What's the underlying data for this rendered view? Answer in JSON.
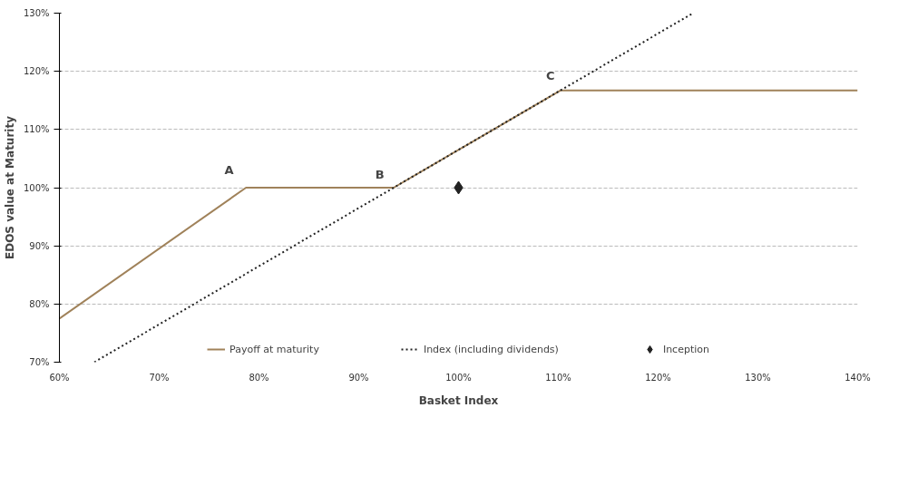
{
  "chart_data": {
    "type": "line",
    "xlabel": "Basket Index",
    "ylabel": "EDOS value at Maturity",
    "xlim": [
      60,
      140
    ],
    "ylim": [
      70,
      130
    ],
    "xticks": [
      {
        "value": 60,
        "label": "60%"
      },
      {
        "value": 70,
        "label": "70%"
      },
      {
        "value": 80,
        "label": "80%"
      },
      {
        "value": 90,
        "label": "90%"
      },
      {
        "value": 100,
        "label": "100%"
      },
      {
        "value": 110,
        "label": "110%"
      },
      {
        "value": 120,
        "label": "120%"
      },
      {
        "value": 130,
        "label": "130%"
      },
      {
        "value": 140,
        "label": "140%"
      }
    ],
    "yticks": [
      {
        "value": 70,
        "label": "70%"
      },
      {
        "value": 80,
        "label": "80%"
      },
      {
        "value": 90,
        "label": "90%"
      },
      {
        "value": 100,
        "label": "100%"
      },
      {
        "value": 110,
        "label": "110%"
      },
      {
        "value": 120,
        "label": "120%"
      },
      {
        "value": 130,
        "label": "130%"
      }
    ],
    "grid": "y",
    "legend": "bottom",
    "series": [
      {
        "name": "Payoff at maturity",
        "line_style": "solid",
        "color": "#a0825a",
        "x": [
          60,
          78.7,
          93.5,
          110.2,
          140
        ],
        "values": [
          77.5,
          100,
          100,
          116.7,
          116.7
        ]
      },
      {
        "name": "Index (including dividends)",
        "line_style": "dotted",
        "color": "#222222",
        "x": [
          63.5,
          123.5
        ],
        "values": [
          70,
          130
        ]
      },
      {
        "name": "Inception",
        "type": "scatter",
        "marker": "diamond",
        "color": "#222222",
        "x": [
          100
        ],
        "values": [
          100
        ]
      }
    ],
    "annotations": [
      {
        "text": "A",
        "x": 77.0,
        "y": 103.1
      },
      {
        "text": "B",
        "x": 92.1,
        "y": 102.3
      },
      {
        "text": "C",
        "x": 109.2,
        "y": 119.2
      }
    ]
  }
}
